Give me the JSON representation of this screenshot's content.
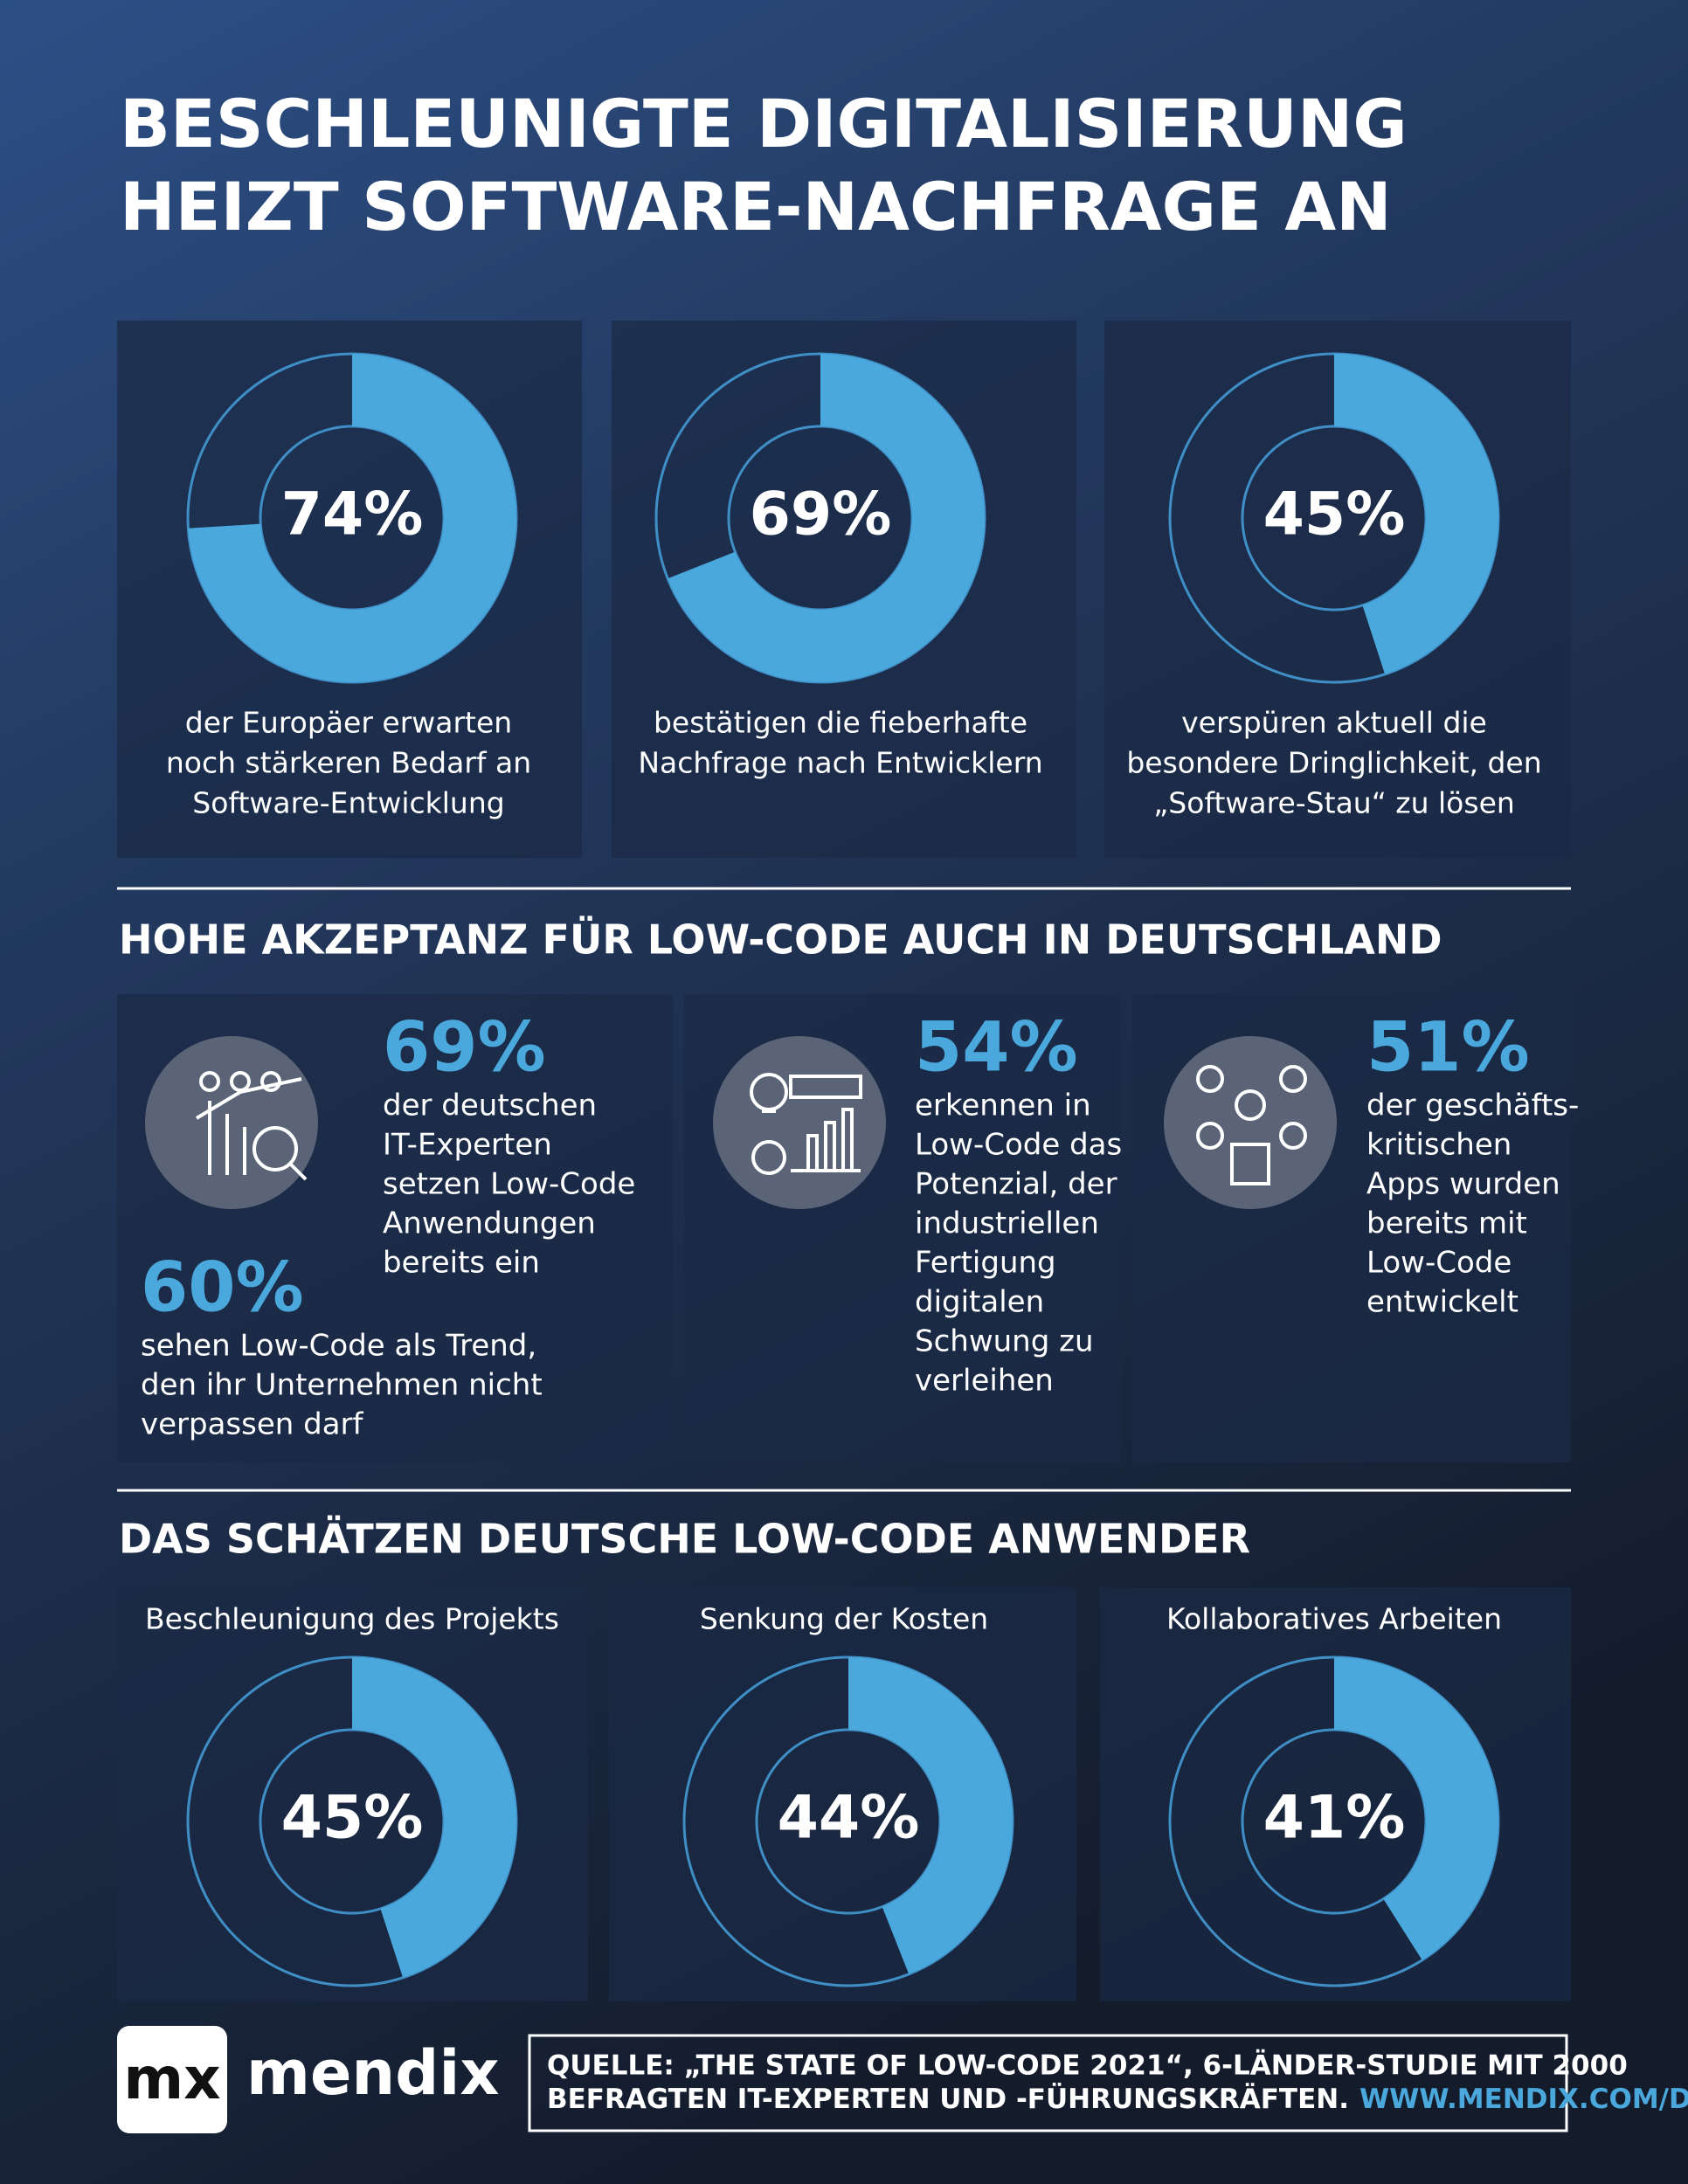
{
  "title": [
    "BESCHLEUNIGTE DIGITALISIERUNG",
    "HEIZT SOFTWARE-NACHFRAGE AN"
  ],
  "top_donuts": [
    {
      "value": 74,
      "value_label": "74%",
      "text": [
        "der Europäer erwarten",
        "noch stärkeren Bedarf an",
        "Software-Entwicklung"
      ]
    },
    {
      "value": 69,
      "value_label": "69%",
      "text": [
        "bestätigen die fieberhafte",
        "Nachfrage nach Entwicklern"
      ]
    },
    {
      "value": 45,
      "value_label": "45%",
      "text": [
        "verspüren aktuell die",
        "besondere Dringlichkeit, den",
        "„Software-Stau“ zu lösen"
      ]
    }
  ],
  "acceptance": {
    "heading": "HOHE AKZEPTANZ FÜR LOW-CODE AUCH IN DEUTSCHLAND",
    "stats": [
      {
        "value": "69%",
        "text": [
          "der deutschen",
          "IT-Experten",
          "setzen Low-Code",
          "Anwendungen",
          "bereits ein"
        ]
      },
      {
        "value": "60%",
        "text": [
          "sehen Low-Code als Trend,",
          "den ihr Unternehmen nicht",
          "verpassen darf"
        ]
      },
      {
        "value": "54%",
        "text": [
          "erkennen in",
          "Low-Code das",
          "Potenzial, der",
          "industriellen",
          "Fertigung",
          "digitalen",
          "Schwung zu",
          "verleihen"
        ]
      },
      {
        "value": "51%",
        "text": [
          "der geschäfts-",
          "kritischen",
          "Apps wurden",
          "bereits mit",
          "Low-Code",
          "entwickelt"
        ]
      }
    ]
  },
  "benefits": {
    "heading": "DAS SCHÄTZEN DEUTSCHE LOW-CODE ANWENDER",
    "donuts": [
      {
        "title": "Beschleunigung des Projekts",
        "value": 45,
        "value_label": "45%"
      },
      {
        "title": "Senkung der Kosten",
        "value": 44,
        "value_label": "44%"
      },
      {
        "title": "Kollaboratives Arbeiten",
        "value": 41,
        "value_label": "41%"
      }
    ]
  },
  "footer": {
    "logo_mark": "mx",
    "logo_text": "mendix",
    "source": [
      "QUELLE: „THE STATE OF LOW-CODE 2021“, 6-LÄNDER-STUDIE MIT 2000",
      "BEFRAGTEN IT-EXPERTEN UND -FÜHRUNGSKRÄFTEN."
    ],
    "url": "WWW.MENDIX.COM/DE"
  }
}
